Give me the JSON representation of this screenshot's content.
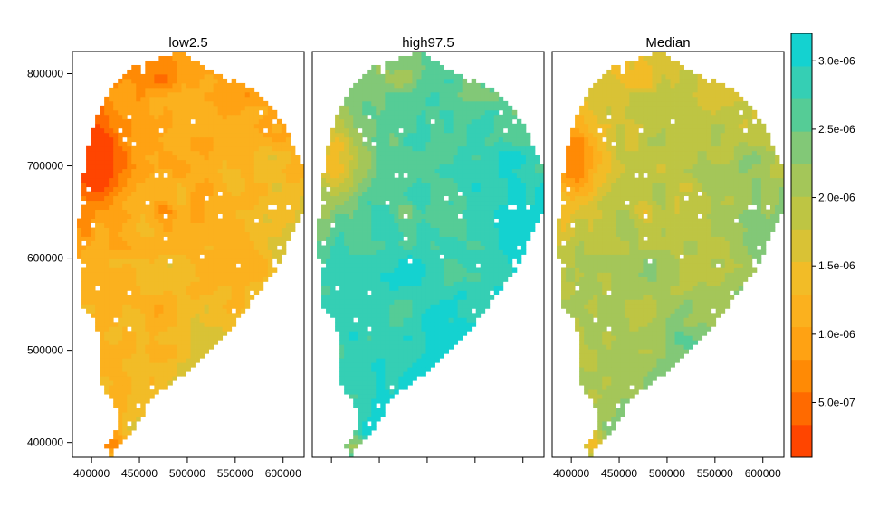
{
  "chart_data": {
    "type": "heatmap",
    "panels": [
      {
        "title": "low2.5",
        "shift": 0.0
      },
      {
        "title": "high97.5",
        "shift": 1.0
      },
      {
        "title": "Median",
        "shift": 0.5
      }
    ],
    "x_ticks": [
      "400000",
      "450000",
      "500000",
      "550000",
      "600000"
    ],
    "x_tick_values": [
      400000,
      450000,
      500000,
      550000,
      600000
    ],
    "y_ticks": [
      "400000",
      "500000",
      "600000",
      "700000",
      "800000"
    ],
    "y_tick_values": [
      400000,
      500000,
      600000,
      700000,
      800000
    ],
    "xlim": [
      380000,
      622000
    ],
    "ylim": [
      384000,
      824000
    ],
    "colorbar": {
      "range": [
        1e-07,
        3.2e-06
      ],
      "tick_labels": [
        "5.0e-07",
        "1.0e-06",
        "1.5e-06",
        "2.0e-06",
        "2.5e-06",
        "3.0e-06"
      ],
      "tick_values": [
        5e-07,
        1e-06,
        1.5e-06,
        2e-06,
        2.5e-06,
        3e-06
      ],
      "colors": [
        "#FF4500",
        "#FF6A00",
        "#FF8A05",
        "#FFA213",
        "#FBB11E",
        "#F2BC27",
        "#D9C235",
        "#BEC543",
        "#A4C659",
        "#82C877",
        "#55CC96",
        "#35CFB4",
        "#14D2D0"
      ]
    }
  }
}
